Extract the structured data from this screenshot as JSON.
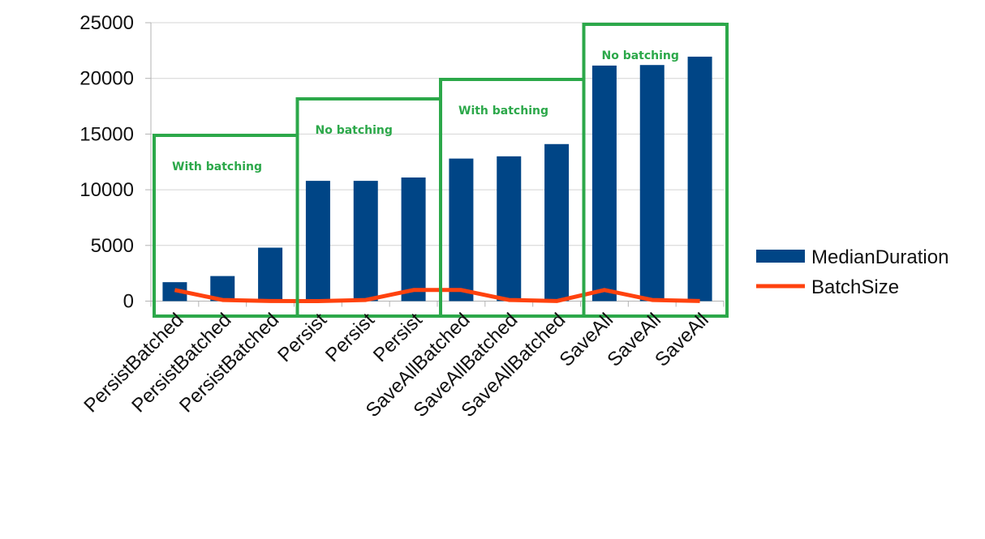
{
  "chart_data": {
    "type": "bar",
    "categories": [
      "PersistBatched",
      "PersistBatched",
      "PersistBatched",
      "Persist",
      "Persist",
      "Persist",
      "SaveAllBatched",
      "SaveAllBatched",
      "SaveAllBatched",
      "SaveAll",
      "SaveAll",
      "SaveAll"
    ],
    "series": [
      {
        "name": "MedianDuration",
        "type": "bar",
        "color": "#004586",
        "values": [
          1700,
          2250,
          4800,
          10800,
          10800,
          11100,
          12800,
          13000,
          14100,
          21150,
          21200,
          21950
        ]
      },
      {
        "name": "BatchSize",
        "type": "line",
        "color": "#ff420e",
        "values": [
          1000,
          100,
          10,
          1,
          100,
          1000,
          1000,
          100,
          10,
          1000,
          100,
          10
        ]
      }
    ],
    "ylim": [
      0,
      25000
    ],
    "yticks": [
      0,
      5000,
      10000,
      15000,
      20000,
      25000
    ],
    "grid": true,
    "legend": "right",
    "annotations": [
      {
        "text": "With batching",
        "categories": [
          0,
          2
        ]
      },
      {
        "text": "No batching",
        "categories": [
          3,
          5
        ]
      },
      {
        "text": "With batching",
        "categories": [
          6,
          8
        ]
      },
      {
        "text": "No batching",
        "categories": [
          9,
          11
        ]
      }
    ],
    "annotation_color": "#2ca84a",
    "axis_color": "#b3b3b3",
    "grid_color": "#d4d4d4"
  }
}
